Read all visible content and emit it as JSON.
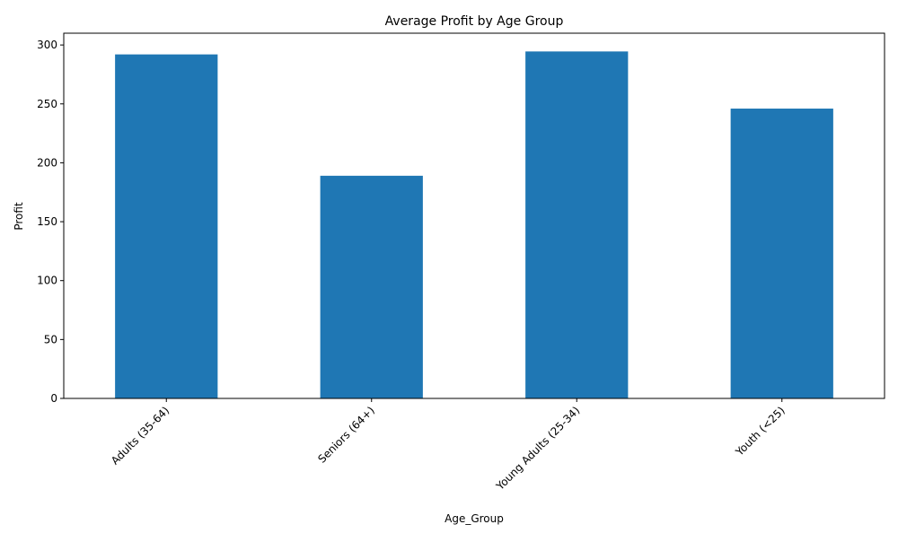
{
  "chart_data": {
    "type": "bar",
    "title": "Average Profit by Age Group",
    "xlabel": "Age_Group",
    "ylabel": "Profit",
    "categories": [
      "Adults (35-64)",
      "Seniors (64+)",
      "Young Adults (25-34)",
      "Youth (<25)"
    ],
    "values": [
      292,
      189,
      294.5,
      246
    ],
    "ylim": [
      0,
      310
    ],
    "yticks": [
      0,
      50,
      100,
      150,
      200,
      250,
      300
    ],
    "bar_color": "#1f77b4",
    "grid": false,
    "legend": "none",
    "xtick_rotation": 45
  }
}
